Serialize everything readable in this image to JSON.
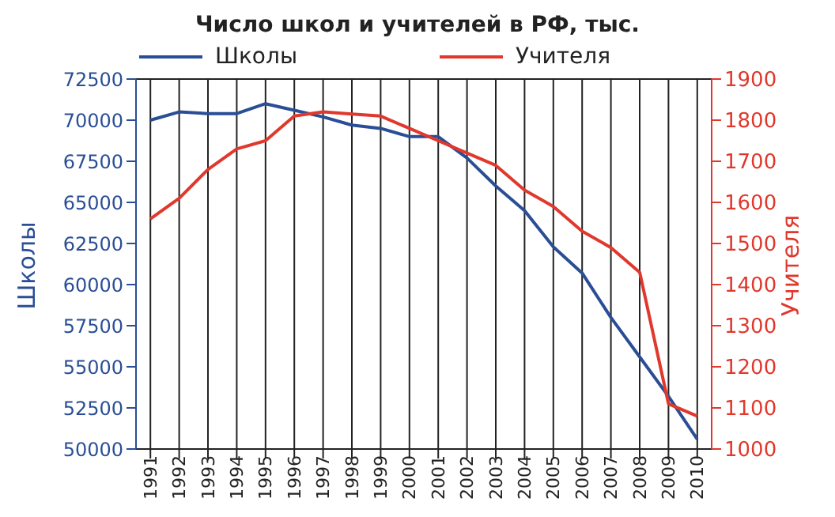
{
  "chart_data": {
    "type": "line",
    "title": "Число школ и учителей в РФ, тыс.",
    "ylabel": "Школы",
    "y2label": "Учителя",
    "x": [
      1991,
      1992,
      1993,
      1994,
      1995,
      1996,
      1997,
      1998,
      1999,
      2000,
      2001,
      2002,
      2003,
      2004,
      2005,
      2006,
      2007,
      2008,
      2009,
      2010
    ],
    "series": [
      {
        "name": "Школы",
        "color": "#2a4e96",
        "values": [
          70000,
          70500,
          70400,
          70400,
          71000,
          70600,
          70200,
          69700,
          69500,
          69000,
          69000,
          67700,
          66000,
          64500,
          62300,
          60700,
          58000,
          55600,
          53200,
          50600
        ]
      },
      {
        "name": "Учителя",
        "color": "#e0382c",
        "axis": "y2",
        "values": [
          1560,
          1610,
          1680,
          1730,
          1750,
          1810,
          1820,
          1815,
          1810,
          1780,
          1750,
          1720,
          1690,
          1630,
          1590,
          1530,
          1490,
          1430,
          1110,
          1080
        ]
      }
    ],
    "xlim": [
      1990.5,
      2010.5
    ],
    "xticks": [
      1991,
      1992,
      1993,
      1994,
      1995,
      1996,
      1997,
      1998,
      1999,
      2000,
      2001,
      2002,
      2003,
      2004,
      2005,
      2006,
      2007,
      2008,
      2009,
      2010
    ],
    "ylim": [
      50000,
      72500
    ],
    "yticks": [
      50000,
      52500,
      55000,
      57500,
      60000,
      62500,
      65000,
      67500,
      70000,
      72500
    ],
    "y2lim": [
      1000,
      1900
    ],
    "y2ticks": [
      1000,
      1100,
      1200,
      1300,
      1400,
      1500,
      1600,
      1700,
      1800,
      1900
    ],
    "grid": true,
    "legend": "top",
    "marker": "none",
    "line_style": "solid"
  }
}
